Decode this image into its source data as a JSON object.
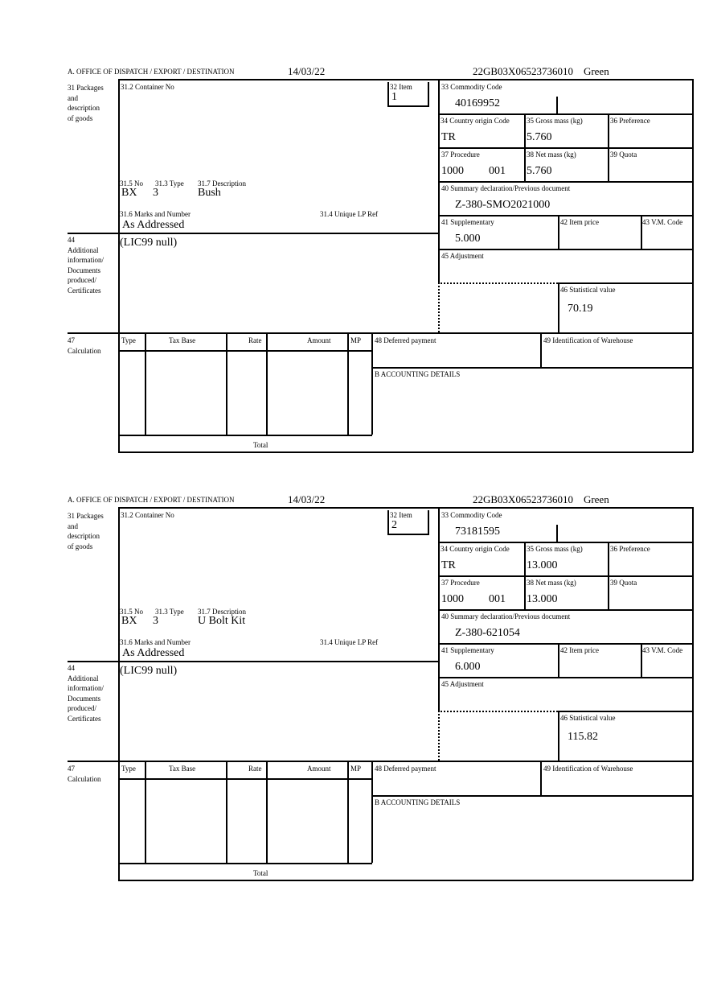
{
  "labels": {
    "office": "A.  OFFICE OF DISPATCH / EXPORT / DESTINATION",
    "box31": "31 Packages\nand\ndescription\nof goods",
    "container_no": "31.2 Container No",
    "item": "32 Item",
    "commodity_code": "33 Commodity Code",
    "country_origin": "34 Country origin Code",
    "gross_mass": "35 Gross mass (kg)",
    "preference": "36 Preference",
    "procedure": "37 Procedure",
    "net_mass": "38 Net mass (kg)",
    "quota": "39 Quota",
    "summary_declaration": "40 Summary declaration/Previous document",
    "supplementary": "41 Supplementary",
    "item_price": "42 Item price",
    "vm_code": "43 V.M. Code",
    "adjustment": "45 Adjustment",
    "statistical_value": "46 Statistical value",
    "pkg_no": "31.5 No",
    "pkg_type": "31.3 Type",
    "pkg_description": "31.7 Description",
    "marks_numbers": "31.6 Marks and Number",
    "unique_lp_ref": "31.4 Unique LP Ref",
    "box44": "44\nAdditional\ninformation/\nDocuments\nproduced/\nCertificates",
    "box47": "47\nCalculation",
    "calc_type": "Type",
    "calc_tax_base": "Tax Base",
    "calc_rate": "Rate",
    "calc_amount": "Amount",
    "calc_mp": "MP",
    "deferred_payment": "48 Deferred payment",
    "warehouse_id": "49 Identification of Warehouse",
    "accounting_details": "B ACCOUNTING DETAILS",
    "total": "Total"
  },
  "forms": [
    {
      "date": "14/03/22",
      "reference": "22GB03X06523736010    Green",
      "item": "1",
      "commodity_code": "40169952",
      "country_origin": "TR",
      "gross_mass": "5.760",
      "procedure": "1000",
      "procedure_additional": "001",
      "net_mass": "5.760",
      "summary_declaration": "Z-380-SMO2021000",
      "supplementary": "5.000",
      "statistical_value": "70.19",
      "pkg_no": "BX",
      "pkg_type": "3",
      "pkg_description": "Bush",
      "marks_numbers": "As Addressed",
      "additional_info": "(LIC99 null)"
    },
    {
      "date": "14/03/22",
      "reference": "22GB03X06523736010    Green",
      "item": "2",
      "commodity_code": "73181595",
      "country_origin": "TR",
      "gross_mass": "13.000",
      "procedure": "1000",
      "procedure_additional": "001",
      "net_mass": "13.000",
      "summary_declaration": "Z-380-621054",
      "supplementary": "6.000",
      "statistical_value": "115.82",
      "pkg_no": "BX",
      "pkg_type": "3",
      "pkg_description": "U Bolt Kit",
      "marks_numbers": "As Addressed",
      "additional_info": "(LIC99 null)"
    }
  ]
}
